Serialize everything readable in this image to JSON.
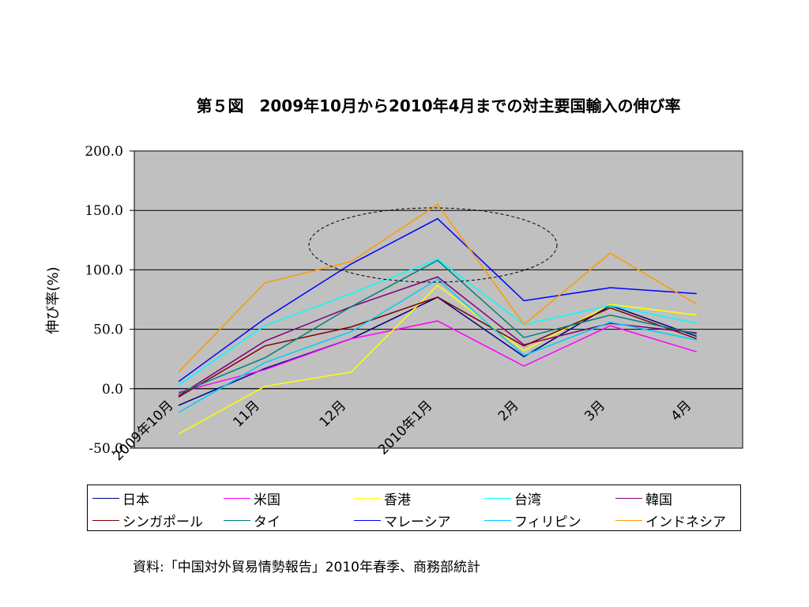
{
  "chart_data": {
    "type": "line",
    "title": "第５図　2009年10月から2010年4月までの対主要国輸入の伸び率",
    "ylabel": "伸び率(%)",
    "xlabel": "",
    "ylim": [
      -50,
      200
    ],
    "yticks": [
      "200.0",
      "150.0",
      "100.0",
      "50.0",
      "0.0",
      "-50.0"
    ],
    "ytick_values": [
      200,
      150,
      100,
      50,
      0,
      -50
    ],
    "categories": [
      "2009年10月",
      "11月",
      "12月",
      "2010年1月",
      "2月",
      "3月",
      "4月"
    ],
    "grid": "horizontal",
    "plot_background": "#c0c0c0",
    "legend_position": "bottom",
    "annotation": "dashed ellipse around the 2010年1月 peak",
    "series": [
      {
        "name": "日本",
        "color": "#000080",
        "values": [
          -14,
          17,
          42,
          77,
          27,
          70,
          44
        ]
      },
      {
        "name": "米国",
        "color": "#ff00ff",
        "values": [
          -3,
          16,
          42,
          57,
          19,
          53,
          31
        ]
      },
      {
        "name": "香港",
        "color": "#ffff00",
        "values": [
          -38,
          2,
          14,
          87,
          32,
          71,
          62
        ]
      },
      {
        "name": "台湾",
        "color": "#00ffff",
        "values": [
          3,
          53,
          80,
          109,
          54,
          70,
          55
        ]
      },
      {
        "name": "韓国",
        "color": "#800080",
        "values": [
          -6,
          40,
          69,
          94,
          37,
          55,
          47
        ]
      },
      {
        "name": "シンガポール",
        "color": "#800000",
        "values": [
          -7,
          36,
          52,
          77,
          36,
          68,
          42
        ]
      },
      {
        "name": "タイ",
        "color": "#008080",
        "values": [
          -4,
          26,
          69,
          108,
          43,
          62,
          46
        ]
      },
      {
        "name": "マレーシア",
        "color": "#0000ff",
        "values": [
          6,
          59,
          105,
          143,
          74,
          85,
          80
        ]
      },
      {
        "name": "フィリピン",
        "color": "#00ccff",
        "values": [
          -20,
          22,
          48,
          92,
          28,
          56,
          41
        ]
      },
      {
        "name": "インドネシア",
        "color": "#ff9900",
        "values": [
          14,
          89,
          107,
          155,
          54,
          114,
          71
        ]
      }
    ]
  },
  "source_note": "資料:「中国対外貿易情勢報告」2010年春季、商務部統計"
}
